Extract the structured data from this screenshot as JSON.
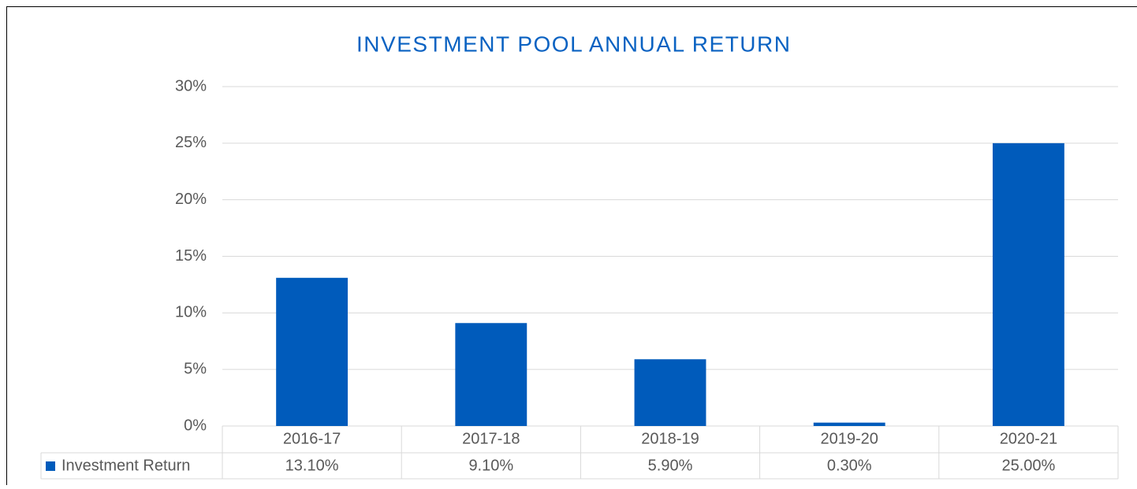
{
  "chart_data": {
    "type": "bar",
    "title": "INVESTMENT POOL ANNUAL RETURN",
    "categories": [
      "2016-17",
      "2017-18",
      "2018-19",
      "2019-20",
      "2020-21"
    ],
    "series": [
      {
        "name": "Investment Return",
        "color": "#005bbb",
        "values": [
          13.1,
          9.1,
          5.9,
          0.3,
          25.0
        ],
        "value_labels": [
          "13.10%",
          "9.10%",
          "5.90%",
          "0.30%",
          "25.00%"
        ]
      }
    ],
    "ylim": [
      0,
      30
    ],
    "yticks": [
      {
        "value": 0,
        "label": "0%"
      },
      {
        "value": 5,
        "label": "5%"
      },
      {
        "value": 10,
        "label": "10%"
      },
      {
        "value": 15,
        "label": "15%"
      },
      {
        "value": 20,
        "label": "20%"
      },
      {
        "value": 25,
        "label": "25%"
      },
      {
        "value": 30,
        "label": "30%"
      }
    ],
    "grid": true,
    "legend": "table"
  }
}
